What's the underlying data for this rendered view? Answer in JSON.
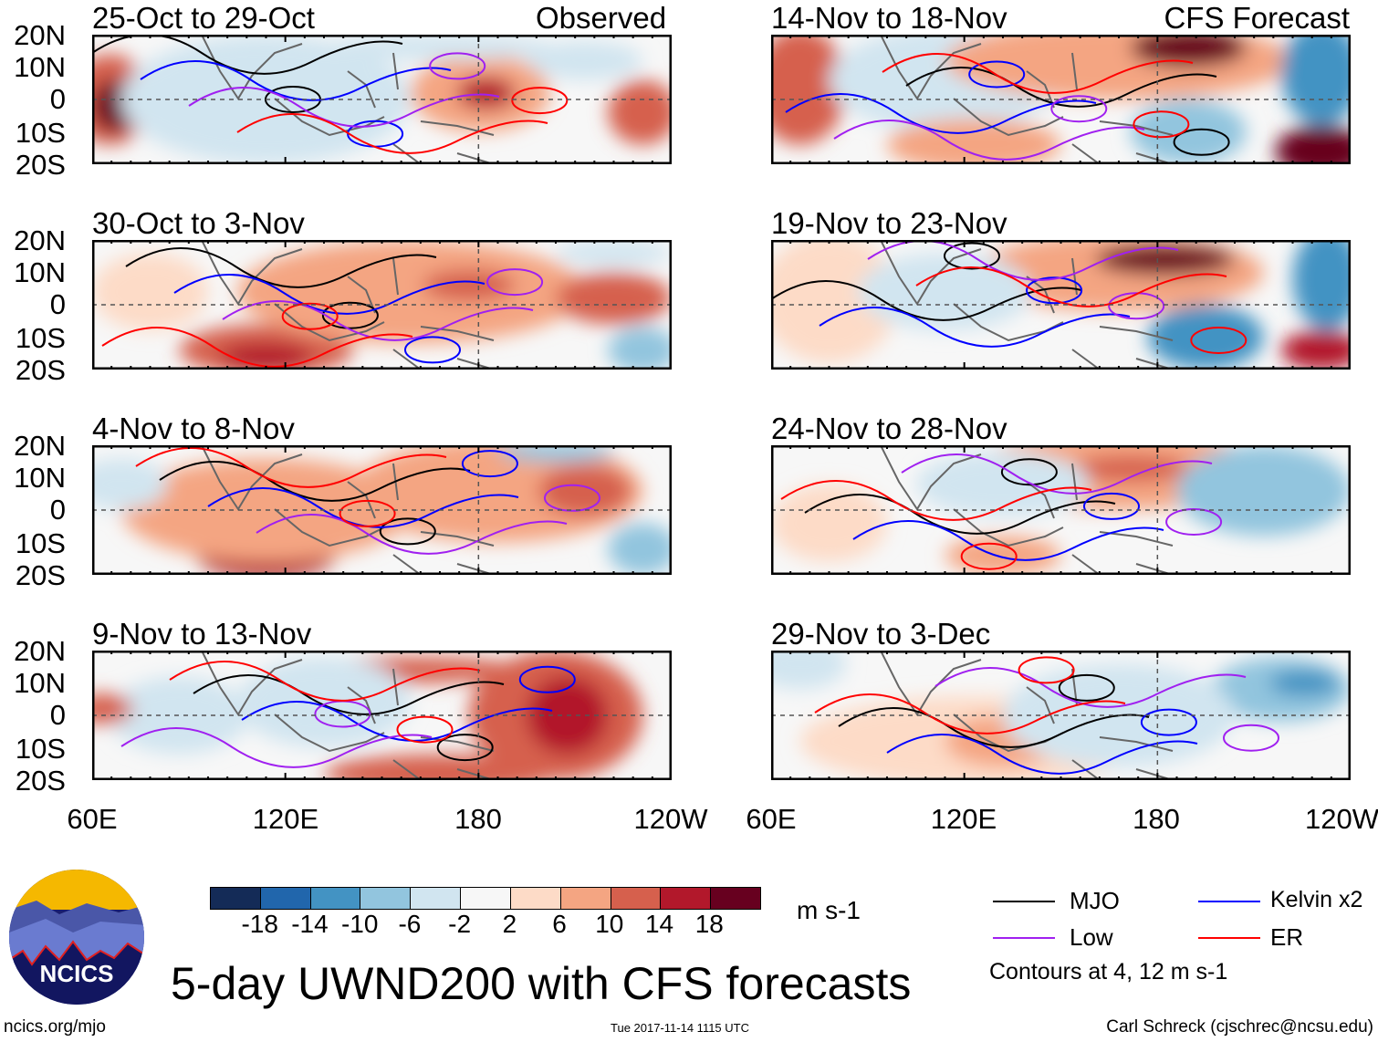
{
  "figure": {
    "title": "5-day UWND200 with CFS forecasts",
    "logo_text": "NCICS",
    "site": "ncics.org/mjo",
    "timestamp": "Tue 2017-11-14 1115 UTC",
    "author": "Carl Schreck (cjschrec@ncsu.edu)"
  },
  "labels": {
    "observed": "Observed",
    "forecast": "CFS Forecast",
    "lat_ticks": [
      "20N",
      "10N",
      "0",
      "10S",
      "20S"
    ],
    "lon_ticks": [
      "60E",
      "120E",
      "180",
      "120W"
    ]
  },
  "panels": [
    {
      "title": "25-Oct to 29-Oct",
      "type": "observed"
    },
    {
      "title": "30-Oct to 3-Nov",
      "type": "observed"
    },
    {
      "title": "4-Nov to 8-Nov",
      "type": "observed"
    },
    {
      "title": "9-Nov to 13-Nov",
      "type": "observed"
    },
    {
      "title": "14-Nov to 18-Nov",
      "type": "forecast"
    },
    {
      "title": "19-Nov to 23-Nov",
      "type": "forecast"
    },
    {
      "title": "24-Nov to 28-Nov",
      "type": "forecast"
    },
    {
      "title": "29-Nov to 3-Dec",
      "type": "forecast"
    }
  ],
  "colorbar": {
    "units": "m s-1",
    "ticks": [
      "-18",
      "-14",
      "-10",
      "-6",
      "-2",
      "2",
      "6",
      "10",
      "14",
      "18"
    ],
    "colors": [
      "#142b57",
      "#2166ac",
      "#4393c3",
      "#92c5de",
      "#d1e5f0",
      "#f7f7f7",
      "#fddbc7",
      "#f4a582",
      "#d6604d",
      "#b2182b",
      "#67001f"
    ]
  },
  "legend": {
    "items": [
      {
        "label": "MJO",
        "color": "#000000"
      },
      {
        "label": "Kelvin x2",
        "color": "#0000ff"
      },
      {
        "label": "Low",
        "color": "#a020f0"
      },
      {
        "label": "ER",
        "color": "#ff0000"
      }
    ],
    "note": "Contours at 4, 12 m s-1"
  }
}
